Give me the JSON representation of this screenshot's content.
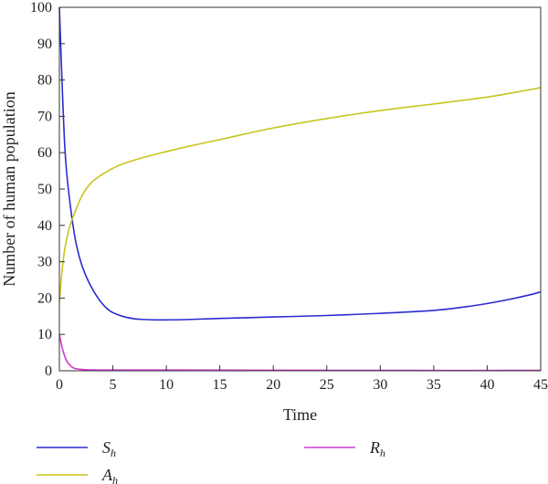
{
  "chart_data": {
    "type": "line",
    "title": "",
    "xlabel": "Time",
    "ylabel": "Number of human population",
    "xlim": [
      0,
      45
    ],
    "ylim": [
      0,
      100
    ],
    "xticks": [
      0,
      5,
      10,
      15,
      20,
      25,
      30,
      35,
      40,
      45
    ],
    "yticks": [
      0,
      10,
      20,
      30,
      40,
      50,
      60,
      70,
      80,
      90,
      100
    ],
    "grid": false,
    "legend_position": "bottom",
    "series": [
      {
        "name": "S",
        "subscript": "h",
        "color": "#2b2bd0",
        "x": [
          0,
          0.5,
          1,
          1.5,
          2,
          2.5,
          3,
          3.5,
          4,
          4.5,
          5,
          6,
          7,
          8,
          9,
          10,
          12,
          15,
          20,
          25,
          30,
          35,
          38,
          40,
          42,
          44,
          45
        ],
        "y": [
          100,
          62,
          46,
          36,
          30,
          26,
          23,
          20.5,
          18.5,
          17,
          16,
          14.9,
          14.3,
          14.1,
          14.0,
          14.0,
          14.1,
          14.4,
          14.8,
          15.2,
          15.8,
          16.6,
          17.6,
          18.5,
          19.6,
          20.9,
          21.7
        ]
      },
      {
        "name": "A",
        "subscript": "h",
        "color": "#c8c41a",
        "x": [
          0,
          0.3,
          0.6,
          1,
          1.5,
          2,
          2.5,
          3,
          3.5,
          4,
          5,
          6,
          8,
          10,
          12,
          15,
          20,
          25,
          30,
          35,
          40,
          43,
          45
        ],
        "y": [
          19,
          29,
          35,
          40,
          44,
          47.5,
          50,
          51.8,
          53,
          54,
          55.7,
          57,
          58.8,
          60.3,
          61.7,
          63.6,
          66.8,
          69.4,
          71.6,
          73.4,
          75.3,
          76.8,
          77.9
        ]
      },
      {
        "name": "R",
        "subscript": "h",
        "color": "#d23ad0",
        "x": [
          0,
          0.25,
          0.5,
          0.75,
          1,
          1.25,
          1.5,
          2,
          2.5,
          3,
          5,
          10,
          20,
          30,
          45
        ],
        "y": [
          10,
          6.5,
          4,
          2.4,
          1.5,
          0.9,
          0.6,
          0.4,
          0.3,
          0.25,
          0.2,
          0.2,
          0.15,
          0.1,
          0.1
        ]
      }
    ]
  }
}
